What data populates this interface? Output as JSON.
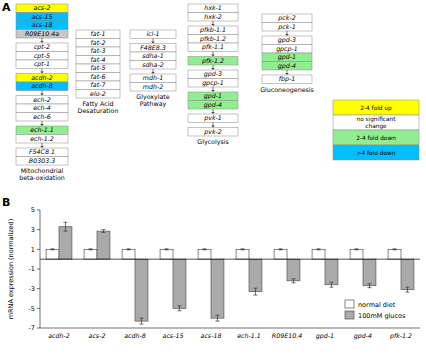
{
  "chart_data": [
    {
      "type": "diagram",
      "title": "A",
      "series": [
        {
          "name": "Mitochondrial\nbeta-oxidation",
          "categories": [
            [
              "acs-2",
              "acs-15",
              "acs-18",
              "R09E10.4a"
            ],
            [
              "cpt-2",
              "cpt-5",
              "cpt-1"
            ],
            [
              "acdh-2",
              "acdh-8"
            ],
            [
              "ech-2",
              "ech-4",
              "ech-6"
            ],
            [
              "ech-1.1",
              "ech-1.2"
            ],
            [
              "F54C8.1",
              "B0303.3"
            ]
          ],
          "colors": [
            [
              "#ffff00",
              "#00bfff",
              "#00bfff",
              "#c8c8c8"
            ],
            [
              "#ffffff",
              "#ffffff",
              "#ffffff"
            ],
            [
              "#ffff00",
              "#00bfff"
            ],
            [
              "#ffffff",
              "#ffffff",
              "#ffffff"
            ],
            [
              "#90ee90",
              "#ffffff"
            ],
            [
              "#ffffff",
              "#ffffff"
            ]
          ]
        },
        {
          "name": "Fatty Acid\nDesaturation",
          "categories": [
            [
              "fat-1",
              "fat-2",
              "fat-3",
              "fat-4",
              "fat-5",
              "fat-6",
              "fat-7",
              "elo-2"
            ]
          ],
          "colors": [
            [
              "#ffffff",
              "#ffffff",
              "#ffffff",
              "#ffffff",
              "#ffffff",
              "#ffffff",
              "#ffffff",
              "#ffffff"
            ]
          ]
        },
        {
          "name": "Glyoxylate\nPathway",
          "categories": [
            [
              "icl-1"
            ],
            [
              "F48E8.3",
              "sdha-1",
              "sdha-2"
            ],
            [
              "mdh-1",
              "mdh-2"
            ]
          ],
          "colors": [
            [
              "#ffffff"
            ],
            [
              "#ffffff",
              "#ffffff",
              "#ffffff"
            ],
            [
              "#ffffff",
              "#ffffff"
            ]
          ]
        },
        {
          "name": "Glycolysis",
          "categories": [
            [
              "hxk-1",
              "hxk-2"
            ],
            [
              "pfkb-1.1",
              "pfkb-1.2",
              "pfk-1.1"
            ],
            [
              "pfk-1.2"
            ],
            [
              "gpd-3",
              "gpcp-1"
            ],
            [
              "gpd-1",
              "gpd-4"
            ],
            [
              "pvk-1"
            ],
            [
              "pvk-2"
            ]
          ],
          "colors": [
            [
              "#ffffff",
              "#ffffff"
            ],
            [
              "#ffffff",
              "#ffffff",
              "#ffffff"
            ],
            [
              "#90ee90"
            ],
            [
              "#ffffff",
              "#ffffff"
            ],
            [
              "#90ee90",
              "#90ee90"
            ],
            [
              "#ffffff"
            ],
            [
              "#ffffff"
            ]
          ]
        },
        {
          "name": "Gluconeogenesis",
          "categories": [
            [
              "pck-2",
              "pck-1"
            ],
            [
              "gpd-3",
              "gpcp-1",
              "gpd-1",
              "gpd-4"
            ],
            [
              "fbp-1"
            ]
          ],
          "colors": [
            [
              "#ffffff",
              "#ffffff"
            ],
            [
              "#ffffff",
              "#ffffff",
              "#90ee90",
              "#90ee90"
            ],
            [
              "#ffffff"
            ]
          ]
        }
      ],
      "annotations": [
        {
          "text": "2-4 fold up",
          "color": "#ffff00"
        },
        {
          "text": "no significant\nchange",
          "color": "#ffffff"
        },
        {
          "text": "2-4 fold down",
          "color": "#90ee90"
        },
        {
          "text": ">4 fold down",
          "color": "#00bfff"
        }
      ]
    },
    {
      "type": "bar",
      "title": "B",
      "categories": [
        "acdh-2",
        "acs-2",
        "acdh-8",
        "acs-15",
        "acs-18",
        "ech-1.1",
        "R09E10.4",
        "gpd-1",
        "gpd-4",
        "pfk-1.2"
      ],
      "series": [
        {
          "name": "normal diet",
          "color": "#ffffff",
          "values": [
            1,
            1,
            1,
            1,
            1,
            1,
            1,
            1,
            1,
            1
          ],
          "errors": [
            0.05,
            0.05,
            0.05,
            0.05,
            0.05,
            0.05,
            0.05,
            0.05,
            0.05,
            0.05
          ]
        },
        {
          "name": "100mM glucos",
          "color": "#aaaaaa",
          "values": [
            3.3,
            2.85,
            -6.3,
            -5.0,
            -6.0,
            -3.3,
            -2.2,
            -2.6,
            -2.7,
            -3.1
          ],
          "errors": [
            0.45,
            0.15,
            0.3,
            0.25,
            0.3,
            0.35,
            0.2,
            0.25,
            0.2,
            0.25
          ]
        }
      ],
      "ylabel": "mRNA expression (normalized)",
      "ylim": [
        -7,
        5
      ],
      "yticks": [
        -7,
        -5,
        -3,
        -1,
        1,
        3,
        5
      ],
      "legend": "lower right"
    }
  ]
}
